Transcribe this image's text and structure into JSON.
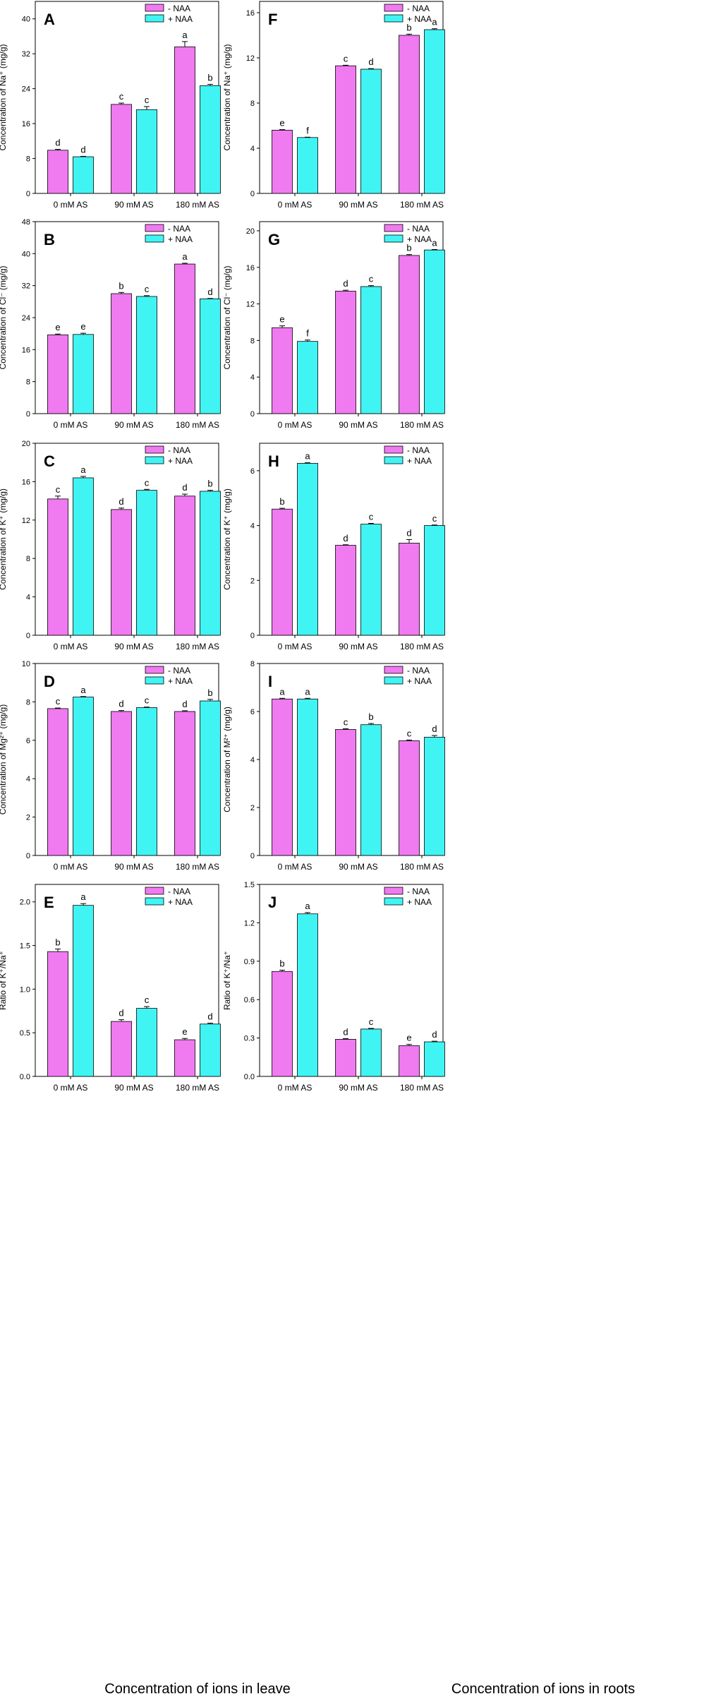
{
  "colors": {
    "minus": "#f07af0",
    "plus": "#40f4f4",
    "axis": "#000000"
  },
  "footer": {
    "left": "Concentration of ions in leave",
    "right": "Concentration of ions in roots"
  },
  "chart_data": [
    {
      "panel": "A",
      "type": "bar",
      "ylabel": "Concentration of Na⁺ (mg/g)",
      "categories": [
        "0 mM AS",
        "90 mM AS",
        "180 mM AS"
      ],
      "ylim": [
        0,
        44
      ],
      "ticks": [
        0,
        8,
        16,
        24,
        32,
        40
      ],
      "series": [
        {
          "name": "- NAA",
          "values": [
            9.9,
            20.4,
            33.6
          ],
          "errors": [
            0.2,
            0.3,
            1.2
          ],
          "letters": [
            "d",
            "c",
            "a"
          ]
        },
        {
          "name": "+ NAA",
          "values": [
            8.4,
            19.2,
            24.7
          ],
          "errors": [
            0.1,
            0.7,
            0.3
          ],
          "letters": [
            "d",
            "c",
            "b"
          ]
        }
      ]
    },
    {
      "panel": "B",
      "type": "bar",
      "ylabel": "Concentration of Cl⁻ (mg/g)",
      "categories": [
        "0 mM AS",
        "90 mM AS",
        "180 mM AS"
      ],
      "ylim": [
        0,
        48
      ],
      "ticks": [
        0,
        8,
        16,
        24,
        32,
        40,
        48
      ],
      "series": [
        {
          "name": "- NAA",
          "values": [
            19.7,
            30.0,
            37.4
          ],
          "errors": [
            0.2,
            0.3,
            0.2
          ],
          "letters": [
            "e",
            "b",
            "a"
          ]
        },
        {
          "name": "+ NAA",
          "values": [
            19.8,
            29.3,
            28.7
          ],
          "errors": [
            0.3,
            0.2,
            0.1
          ],
          "letters": [
            "e",
            "c",
            "d"
          ]
        }
      ]
    },
    {
      "panel": "C",
      "type": "bar",
      "ylabel": "Concentration of K⁺ (mg/g)",
      "categories": [
        "0 mM AS",
        "90 mM AS",
        "180 mM AS"
      ],
      "ylim": [
        0,
        20
      ],
      "ticks": [
        0,
        4,
        8,
        12,
        16,
        20
      ],
      "series": [
        {
          "name": "- NAA",
          "values": [
            14.2,
            13.1,
            14.5
          ],
          "errors": [
            0.3,
            0.15,
            0.2
          ],
          "letters": [
            "c",
            "d",
            "d"
          ]
        },
        {
          "name": "+ NAA",
          "values": [
            16.4,
            15.1,
            15.0
          ],
          "errors": [
            0.15,
            0.1,
            0.1
          ],
          "letters": [
            "a",
            "c",
            "b"
          ]
        }
      ]
    },
    {
      "panel": "D",
      "type": "bar",
      "ylabel": "Concentration of Mg²⁺ (mg/g)",
      "categories": [
        "0 mM AS",
        "90 mM AS",
        "180 mM AS"
      ],
      "ylim": [
        0,
        10
      ],
      "ticks": [
        0,
        2,
        4,
        6,
        8,
        10
      ],
      "series": [
        {
          "name": "- NAA",
          "values": [
            7.65,
            7.5,
            7.5
          ],
          "errors": [
            0.03,
            0.05,
            0.04
          ],
          "letters": [
            "c",
            "d",
            "d"
          ]
        },
        {
          "name": "+ NAA",
          "values": [
            8.25,
            7.7,
            8.05
          ],
          "errors": [
            0.03,
            0.03,
            0.08
          ],
          "letters": [
            "a",
            "c",
            "b"
          ]
        }
      ]
    },
    {
      "panel": "E",
      "type": "bar",
      "ylabel": "Ratio of K⁺/Na⁺",
      "categories": [
        "0 mM AS",
        "90 mM AS",
        "180 mM AS"
      ],
      "ylim": [
        0,
        2.2
      ],
      "ticks": [
        0.0,
        0.5,
        1.0,
        1.5,
        2.0
      ],
      "tickDecimals": 1,
      "series": [
        {
          "name": "- NAA",
          "values": [
            1.43,
            0.63,
            0.42
          ],
          "errors": [
            0.03,
            0.02,
            0.015
          ],
          "letters": [
            "b",
            "d",
            "e"
          ]
        },
        {
          "name": "+ NAA",
          "values": [
            1.96,
            0.78,
            0.6
          ],
          "errors": [
            0.02,
            0.02,
            0.01
          ],
          "letters": [
            "a",
            "c",
            "d"
          ]
        }
      ]
    },
    {
      "panel": "F",
      "type": "bar",
      "ylabel": "Concentration of Na⁺ (mg/g)",
      "categories": [
        "0 mM AS",
        "90 mM AS",
        "180 mM AS"
      ],
      "ylim": [
        0,
        17
      ],
      "ticks": [
        0,
        4,
        8,
        12,
        16
      ],
      "series": [
        {
          "name": "- NAA",
          "values": [
            5.6,
            11.3,
            14.0
          ],
          "errors": [
            0.05,
            0.05,
            0.1
          ],
          "letters": [
            "e",
            "c",
            "b"
          ]
        },
        {
          "name": "+ NAA",
          "values": [
            4.95,
            11.0,
            14.5
          ],
          "errors": [
            0.03,
            0.05,
            0.08
          ],
          "letters": [
            "f",
            "d",
            "a"
          ]
        }
      ]
    },
    {
      "panel": "G",
      "type": "bar",
      "ylabel": "Concentration of Cl⁻ (mg/g)",
      "categories": [
        "0 mM AS",
        "90 mM AS",
        "180 mM AS"
      ],
      "ylim": [
        0,
        21
      ],
      "ticks": [
        0,
        4,
        8,
        12,
        16,
        20
      ],
      "series": [
        {
          "name": "- NAA",
          "values": [
            9.4,
            13.4,
            17.3
          ],
          "errors": [
            0.2,
            0.1,
            0.1
          ],
          "letters": [
            "e",
            "d",
            "b"
          ]
        },
        {
          "name": "+ NAA",
          "values": [
            7.9,
            13.9,
            17.9
          ],
          "errors": [
            0.15,
            0.1,
            0.05
          ],
          "letters": [
            "f",
            "c",
            "a"
          ]
        }
      ]
    },
    {
      "panel": "H",
      "type": "bar",
      "ylabel": "Concentration of K⁺ (mg/g)",
      "categories": [
        "0 mM AS",
        "90 mM AS",
        "180 mM AS"
      ],
      "ylim": [
        0,
        7
      ],
      "ticks": [
        0,
        2,
        4,
        6
      ],
      "series": [
        {
          "name": "- NAA",
          "values": [
            4.6,
            3.28,
            3.36
          ],
          "errors": [
            0.03,
            0.02,
            0.13
          ],
          "letters": [
            "b",
            "d",
            "d"
          ]
        },
        {
          "name": "+ NAA",
          "values": [
            6.27,
            4.05,
            4.0
          ],
          "errors": [
            0.02,
            0.03,
            0.02
          ],
          "letters": [
            "a",
            "c",
            "c"
          ]
        }
      ]
    },
    {
      "panel": "I",
      "type": "bar",
      "ylabel": "Concentration of M²⁺ (mg/g)",
      "categories": [
        "0 mM AS",
        "90 mM AS",
        "180 mM AS"
      ],
      "ylim": [
        0,
        8
      ],
      "ticks": [
        0,
        2,
        4,
        6,
        8
      ],
      "series": [
        {
          "name": "- NAA",
          "values": [
            6.52,
            5.25,
            4.78
          ],
          "errors": [
            0.03,
            0.03,
            0.03
          ],
          "letters": [
            "a",
            "c",
            "c"
          ]
        },
        {
          "name": "+ NAA",
          "values": [
            6.52,
            5.45,
            4.93
          ],
          "errors": [
            0.03,
            0.05,
            0.07
          ],
          "letters": [
            "a",
            "b",
            "d"
          ]
        }
      ]
    },
    {
      "panel": "J",
      "type": "bar",
      "ylabel": "Ratio of K⁺/Na⁺",
      "categories": [
        "0 mM AS",
        "90 mM AS",
        "180 mM AS"
      ],
      "ylim": [
        0,
        1.5
      ],
      "ticks": [
        0.0,
        0.3,
        0.6,
        0.9,
        1.2,
        1.5
      ],
      "tickDecimals": 1,
      "series": [
        {
          "name": "- NAA",
          "values": [
            0.82,
            0.29,
            0.24
          ],
          "errors": [
            0.01,
            0.005,
            0.01
          ],
          "letters": [
            "b",
            "d",
            "e"
          ]
        },
        {
          "name": "+ NAA",
          "values": [
            1.27,
            0.37,
            0.27
          ],
          "errors": [
            0.01,
            0.005,
            0.005
          ],
          "letters": [
            "a",
            "c",
            "d"
          ]
        }
      ]
    }
  ]
}
